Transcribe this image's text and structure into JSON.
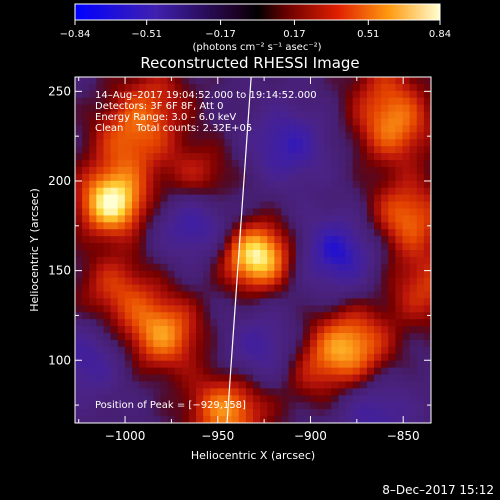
{
  "chart_data": {
    "type": "heatmap",
    "title": "Reconstructed RHESSI Image",
    "xlabel": "Heliocentric X (arcsec)",
    "ylabel": "Heliocentric Y (arcsec)",
    "xlim": [
      -1027,
      -835
    ],
    "ylim": [
      65,
      258
    ],
    "x_ticks": [
      -1000,
      -950,
      -900,
      -850
    ],
    "y_ticks": [
      100,
      150,
      200,
      250
    ],
    "x_tick_labels": [
      "−1000",
      "−950",
      "−900",
      "−850"
    ],
    "y_tick_labels": [
      "100",
      "150",
      "200",
      "250"
    ],
    "colorbar": {
      "range": [
        -0.84,
        0.84
      ],
      "ticks": [
        -0.84,
        -0.51,
        -0.17,
        0.17,
        0.51,
        0.84
      ],
      "tick_labels": [
        "−0.84",
        "−0.51",
        "−0.17",
        "0.17",
        "0.51",
        "0.84"
      ],
      "unit_label": "(photons cm⁻² s⁻¹ asec⁻²)"
    },
    "annotations": [
      "14–Aug–2017 19:04:52.000 to 19:14:52.000",
      "Detectors: 3F 6F 8F, Att 0",
      "Energy Range: 3.0 – 6.0 keV",
      "Clean    Total counts: 2.32E+05"
    ],
    "peak_label": "Position of Peak = [−929,158]",
    "peak_position": [
      -929,
      158
    ],
    "limb_line": [
      [
        -932,
        258
      ],
      [
        -945,
        65
      ]
    ],
    "sources": [
      {
        "x": -1007,
        "y": 188,
        "value": 0.84
      },
      {
        "x": -929,
        "y": 158,
        "value": 0.84
      },
      {
        "x": -998,
        "y": 222,
        "value": 0.35
      },
      {
        "x": -960,
        "y": 200,
        "value": 0.3
      },
      {
        "x": -980,
        "y": 115,
        "value": 0.55
      },
      {
        "x": -1005,
        "y": 140,
        "value": 0.3
      },
      {
        "x": -945,
        "y": 72,
        "value": 0.55
      },
      {
        "x": -900,
        "y": 95,
        "value": 0.2
      },
      {
        "x": -878,
        "y": 108,
        "value": 0.55
      },
      {
        "x": -855,
        "y": 230,
        "value": 0.45
      },
      {
        "x": -848,
        "y": 180,
        "value": 0.45
      },
      {
        "x": -838,
        "y": 140,
        "value": 0.3
      },
      {
        "x": -985,
        "y": 245,
        "value": 0.25
      },
      {
        "x": -860,
        "y": 255,
        "value": 0.15
      }
    ],
    "negatives": [
      {
        "x": -962,
        "y": 178,
        "value": -0.5
      },
      {
        "x": -885,
        "y": 160,
        "value": -0.55
      },
      {
        "x": -912,
        "y": 220,
        "value": -0.45
      },
      {
        "x": -1020,
        "y": 100,
        "value": -0.35
      },
      {
        "x": -925,
        "y": 105,
        "value": -0.4
      },
      {
        "x": -865,
        "y": 70,
        "value": -0.35
      }
    ]
  },
  "footer": {
    "date": "8–Dec–2017 15:12"
  }
}
